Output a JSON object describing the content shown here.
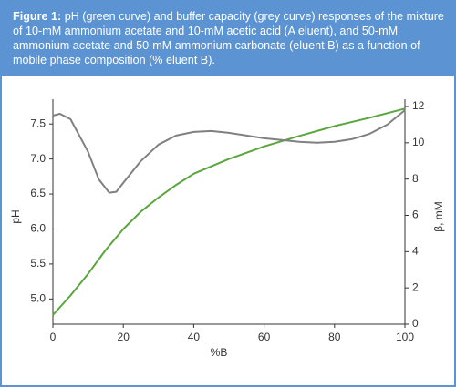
{
  "caption_label": "Figure 1:",
  "caption_text": "pH (green curve) and buffer capacity (grey curve) responses of the mixture of 10-mM ammonium acetate and 10-mM acetic acid (A eluent), and 50-mM ammonium acetate and 50-mM ammonium carbonate (eluent B) as a function of mobile phase composition (% eluent B).",
  "chart_data": {
    "type": "line",
    "x_label": "%B",
    "y_label": "pH",
    "y2_label": "β, mM",
    "xlim": [
      0,
      100
    ],
    "xticks": [
      0,
      20,
      40,
      60,
      80,
      100
    ],
    "ylim": [
      4.64,
      7.75
    ],
    "yticks": [
      {
        "value": 5,
        "label": "5.0"
      },
      5.5,
      {
        "value": 6,
        "label": "6.0"
      },
      6.5,
      {
        "value": 7,
        "label": "7.0"
      },
      7.5
    ],
    "y2lim": [
      0,
      12
    ],
    "y2ticks": [
      0,
      2,
      4,
      6,
      8,
      10,
      12
    ],
    "series": [
      {
        "name": "pH",
        "color": "#5aa63c",
        "x": [
          0,
          5,
          10,
          15,
          20,
          25,
          30,
          35,
          40,
          50,
          60,
          70,
          80,
          90,
          100
        ],
        "values": [
          4.77,
          5.05,
          5.36,
          5.7,
          6.0,
          6.25,
          6.45,
          6.63,
          6.79,
          7.0,
          7.18,
          7.33,
          7.47,
          7.59,
          7.72
        ]
      },
      {
        "name": "β",
        "color": "#808080",
        "axis": "y2",
        "x": [
          0,
          2,
          5,
          10,
          13,
          16,
          18,
          20,
          25,
          30,
          35,
          40,
          45,
          50,
          55,
          60,
          65,
          70,
          75,
          80,
          85,
          90,
          95,
          100
        ],
        "values": [
          11.5,
          11.6,
          11.3,
          9.5,
          8.0,
          7.25,
          7.3,
          7.8,
          9.0,
          9.9,
          10.4,
          10.6,
          10.65,
          10.55,
          10.4,
          10.25,
          10.15,
          10.05,
          10.0,
          10.05,
          10.2,
          10.5,
          11.0,
          11.8
        ]
      }
    ]
  }
}
